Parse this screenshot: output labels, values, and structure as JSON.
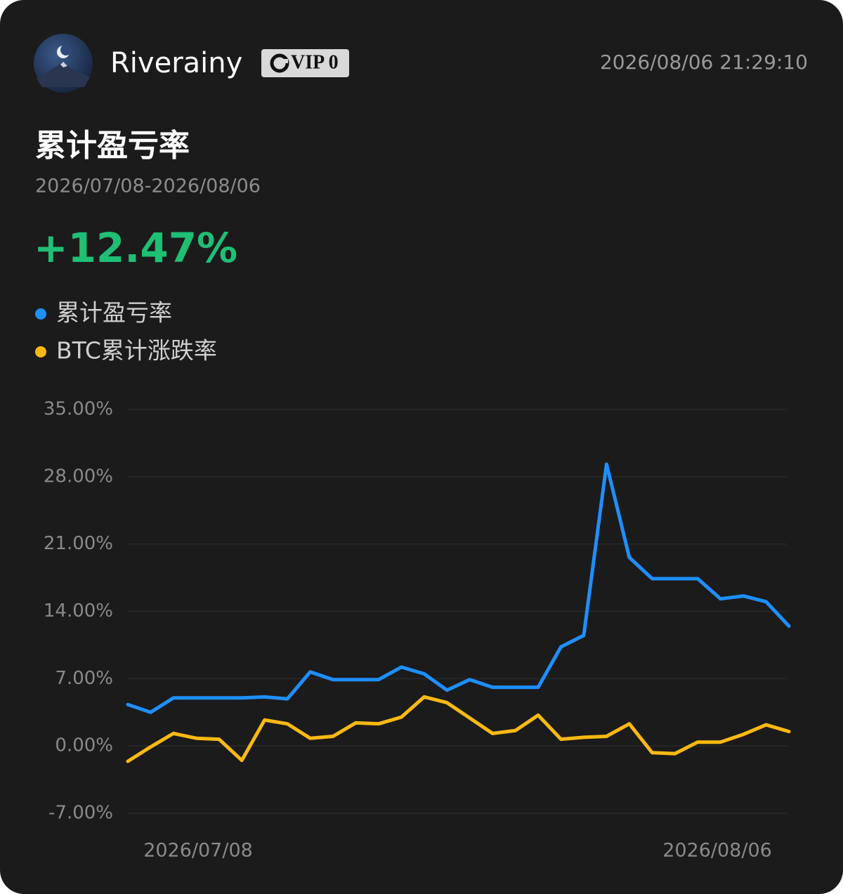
{
  "header": {
    "username": "Riverainy",
    "badge": "VIP 0",
    "timestamp": "2026/08/06 21:29:10"
  },
  "summary": {
    "title": "累计盈亏率",
    "range": "2026/07/08-2026/08/06",
    "value": "+12.47%"
  },
  "chart_data": {
    "type": "line",
    "categories": [
      "2026/07/08",
      null,
      null,
      null,
      null,
      null,
      null,
      null,
      null,
      null,
      null,
      null,
      null,
      null,
      null,
      null,
      null,
      null,
      null,
      null,
      null,
      null,
      null,
      null,
      null,
      null,
      null,
      null,
      null,
      "2026/08/06"
    ],
    "series": [
      {
        "name": "累计盈亏率",
        "color": "#1e8fff",
        "values": [
          4.3,
          3.5,
          5.0,
          5.0,
          5.0,
          5.0,
          5.1,
          4.9,
          7.7,
          6.9,
          6.9,
          6.9,
          8.2,
          7.5,
          5.8,
          6.9,
          6.1,
          6.1,
          6.1,
          10.3,
          11.5,
          29.3,
          19.6,
          17.4,
          17.4,
          17.4,
          15.3,
          15.6,
          15.0,
          12.47
        ]
      },
      {
        "name": "BTC累计涨跌率",
        "color": "#fbb910",
        "values": [
          -1.6,
          -0.1,
          1.3,
          0.8,
          0.7,
          -1.5,
          2.7,
          2.3,
          0.8,
          1.0,
          2.4,
          2.3,
          3.0,
          5.1,
          4.5,
          2.9,
          1.3,
          1.6,
          3.2,
          0.7,
          0.9,
          1.0,
          2.3,
          -0.7,
          -0.8,
          0.4,
          0.4,
          1.2,
          2.2,
          1.5
        ]
      }
    ],
    "ylim": [
      -7,
      35
    ],
    "yticks": [
      {
        "value": 35,
        "label": "35.00%"
      },
      {
        "value": 28,
        "label": "28.00%"
      },
      {
        "value": 21,
        "label": "21.00%"
      },
      {
        "value": 14,
        "label": "14.00%"
      },
      {
        "value": 7,
        "label": "7.00%"
      },
      {
        "value": 0,
        "label": "0.00%"
      },
      {
        "value": -7,
        "label": "-7.00%"
      }
    ],
    "grid": true
  }
}
